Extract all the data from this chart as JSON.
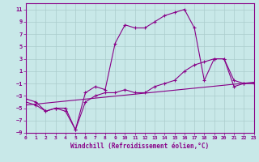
{
  "xlabel": "Windchill (Refroidissement éolien,°C)",
  "bg_color": "#c8e8e8",
  "line_color": "#880088",
  "grid_color": "#aacccc",
  "xlim": [
    0,
    23
  ],
  "ylim": [
    -9,
    12
  ],
  "xticks": [
    0,
    1,
    2,
    3,
    4,
    5,
    6,
    7,
    8,
    9,
    10,
    11,
    12,
    13,
    14,
    15,
    16,
    17,
    18,
    19,
    20,
    21,
    22,
    23
  ],
  "yticks": [
    -9,
    -7,
    -5,
    -3,
    -1,
    1,
    3,
    5,
    7,
    9,
    11
  ],
  "series1_x": [
    0,
    1,
    2,
    3,
    4,
    5,
    6,
    7,
    8,
    9,
    10,
    11,
    12,
    13,
    14,
    15,
    16,
    17,
    18,
    19,
    20,
    21,
    22,
    23
  ],
  "series1_y": [
    -3.5,
    -4.0,
    -5.5,
    -5.0,
    -5.0,
    -8.5,
    -2.5,
    -1.5,
    -2.0,
    5.5,
    8.5,
    8.0,
    8.0,
    9.0,
    10.0,
    10.5,
    11.0,
    8.0,
    -0.5,
    3.0,
    3.0,
    -0.5,
    -1.0,
    -1.0
  ],
  "series2_x": [
    0,
    1,
    2,
    3,
    4,
    5,
    6,
    7,
    8,
    9,
    10,
    11,
    12,
    13,
    14,
    15,
    16,
    17,
    18,
    19,
    20,
    21,
    22,
    23
  ],
  "series2_y": [
    -4.0,
    -4.5,
    -5.5,
    -5.0,
    -5.5,
    -8.5,
    -4.0,
    -3.0,
    -2.5,
    -2.5,
    -2.0,
    -2.5,
    -2.5,
    -1.5,
    -1.0,
    -0.5,
    1.0,
    2.0,
    2.5,
    3.0,
    3.0,
    -1.5,
    -1.0,
    -1.0
  ],
  "series3_x": [
    0,
    23
  ],
  "series3_y": [
    -4.5,
    -0.8
  ]
}
